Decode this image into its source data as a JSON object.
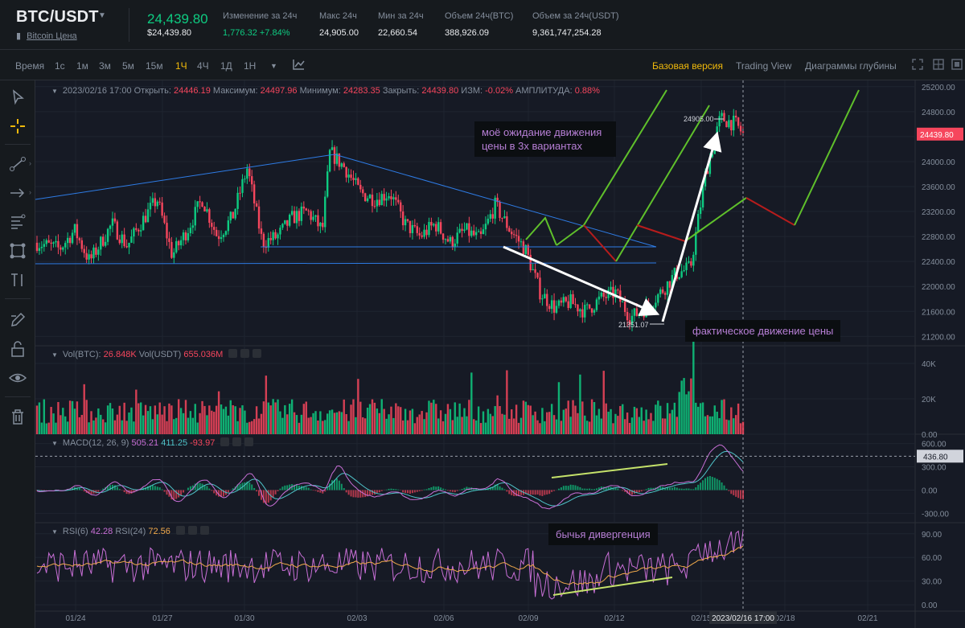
{
  "header": {
    "pair": "BTC/USDT",
    "subtitle": "Bitcoin Цена",
    "last_price": "24,439.80",
    "last_price_usd": "$24,439.80",
    "stats": [
      {
        "label": "Изменение за 24ч",
        "value": "1,776.32 +7.84%",
        "color": "#0ecb81"
      },
      {
        "label": "Макс 24ч",
        "value": "24,905.00"
      },
      {
        "label": "Мин за 24ч",
        "value": "22,660.54"
      },
      {
        "label": "Объем 24ч(BTC)",
        "value": "388,926.09"
      },
      {
        "label": "Объем за 24ч(USDT)",
        "value": "9,361,747,254.28"
      }
    ]
  },
  "toolbar": {
    "intervals": [
      "Время",
      "1с",
      "1м",
      "3м",
      "5м",
      "15м",
      "1Ч",
      "4Ч",
      "1Д",
      "1Н"
    ],
    "active_interval": "1Ч",
    "modes": [
      "Базовая версия",
      "Trading View",
      "Диаграммы глубины"
    ],
    "active_mode": "Базовая версия",
    "icons": [
      "chevron-down-icon",
      "indicator-icon",
      "fullscreen-icon",
      "grid-icon",
      "layout-icon"
    ]
  },
  "left_tools": [
    "cursor-icon",
    "crosshair-icon",
    "trendline-icon",
    "arrow-icon",
    "fib-icon",
    "pattern-icon",
    "measure-icon",
    "pencil-icon",
    "lock-icon",
    "eye-icon",
    "trash-icon"
  ],
  "legends": {
    "ohlc": {
      "date": "2023/02/16 17:00",
      "open_label": "Открыть:",
      "open": "24446.19",
      "high_label": "Максимум:",
      "high": "24497.96",
      "low_label": "Минимум:",
      "low": "24283.35",
      "close_label": "Закрыть:",
      "close": "24439.80",
      "change_label": "ИЗМ:",
      "change": "-0.02%",
      "amp_label": "АМПЛИТУДА:",
      "amp": "0.88%"
    },
    "volume": {
      "label1": "Vol(BTC):",
      "value1": "26.848K",
      "label2": "Vol(USDT)",
      "value2": "655.036M"
    },
    "macd": {
      "label": "MACD(12, 26, 9)",
      "v1": "505.21",
      "v2": "411.25",
      "v3": "-93.97"
    },
    "rsi": {
      "label6": "RSI(6)",
      "v6": "42.28",
      "label24": "RSI(24)",
      "v24": "72.56"
    }
  },
  "notes": {
    "expectation": "моё ожидание движения цены в 3х вариантах",
    "actual": "фактическое движение цены",
    "divergence": "бычья дивергенция"
  },
  "chart_data": [
    {
      "type": "candlestick",
      "title": "BTC/USDT 1Ч",
      "y_ticks": [
        21200,
        21600,
        22000,
        22400,
        22800,
        23200,
        23600,
        24000,
        24400,
        24800,
        25200
      ],
      "y_tick_labels": [
        "21200.00",
        "21600.00",
        "22000.00",
        "22400.00",
        "22800.00",
        "23200.00",
        "23600.00",
        "24000.00",
        "24400.00",
        "24800.00",
        "25200.00"
      ],
      "ylim": [
        21050,
        25300
      ],
      "current_price_label": "24439.80",
      "annotations": {
        "high_marker": "24905.00",
        "low_marker": "21351.07"
      },
      "x_tick_labels": [
        "01/24",
        "01/27",
        "01/30",
        "02/03",
        "02/06",
        "02/09",
        "02/12",
        "02/15",
        "2023/02/16 17:00",
        "02/18",
        "02/21"
      ],
      "path": [
        [
          0,
          22700
        ],
        [
          0.03,
          22600
        ],
        [
          0.05,
          22900
        ],
        [
          0.07,
          22400
        ],
        [
          0.1,
          23000
        ],
        [
          0.12,
          22650
        ],
        [
          0.14,
          23050
        ],
        [
          0.16,
          23400
        ],
        [
          0.18,
          22500
        ],
        [
          0.2,
          22900
        ],
        [
          0.22,
          23400
        ],
        [
          0.24,
          22800
        ],
        [
          0.26,
          23100
        ],
        [
          0.28,
          23900
        ],
        [
          0.3,
          22700
        ],
        [
          0.32,
          22800
        ],
        [
          0.34,
          23100
        ],
        [
          0.36,
          23200
        ],
        [
          0.38,
          22900
        ],
        [
          0.39,
          24150
        ],
        [
          0.41,
          23900
        ],
        [
          0.43,
          23500
        ],
        [
          0.45,
          23400
        ],
        [
          0.47,
          23500
        ],
        [
          0.49,
          23000
        ],
        [
          0.51,
          22800
        ],
        [
          0.53,
          23000
        ],
        [
          0.55,
          22700
        ],
        [
          0.57,
          22900
        ],
        [
          0.59,
          22750
        ],
        [
          0.61,
          23300
        ],
        [
          0.63,
          22900
        ],
        [
          0.65,
          22600
        ],
        [
          0.67,
          21900
        ],
        [
          0.69,
          21650
        ],
        [
          0.71,
          21750
        ],
        [
          0.73,
          21600
        ],
        [
          0.75,
          21800
        ],
        [
          0.77,
          21900
        ],
        [
          0.79,
          21500
        ],
        [
          0.81,
          21650
        ],
        [
          0.83,
          21900
        ],
        [
          0.85,
          22200
        ],
        [
          0.87,
          22300
        ],
        [
          0.89,
          23800
        ],
        [
          0.91,
          24700
        ],
        [
          0.93,
          24600
        ],
        [
          0.94,
          24440
        ]
      ]
    },
    {
      "type": "bar",
      "title": "Volume",
      "y_tick_labels": [
        "40K",
        "20K",
        "0.00"
      ],
      "y_ticks": [
        40000,
        20000,
        0
      ],
      "ylim": [
        0,
        50000
      ]
    },
    {
      "type": "line",
      "title": "MACD",
      "y_tick_labels": [
        "600.00",
        "300.00",
        "0.00",
        "-300.00"
      ],
      "y_ticks": [
        600,
        300,
        0,
        -300
      ],
      "ylim": [
        -420,
        720
      ],
      "current_value_label": "436.80"
    },
    {
      "type": "line",
      "title": "RSI",
      "y_tick_labels": [
        "90.00",
        "60.00",
        "30.00",
        "0.00"
      ],
      "y_ticks": [
        90,
        60,
        30,
        0
      ],
      "ylim": [
        -8,
        104
      ]
    }
  ],
  "colors": {
    "bg": "#161a25",
    "up": "#0ecb81",
    "down": "#f6465d",
    "accent": "#f0b90b",
    "grid": "#1f2430",
    "trendline": "#2e7ce6",
    "scenario_up": "#5fc02b",
    "scenario_down": "#b71c1c",
    "macd": "#c86fd6",
    "signal": "#4fc3c9",
    "rsi6": "#c86fd6",
    "rsi24": "#f0a94b",
    "divergence": "#c5e26a"
  }
}
